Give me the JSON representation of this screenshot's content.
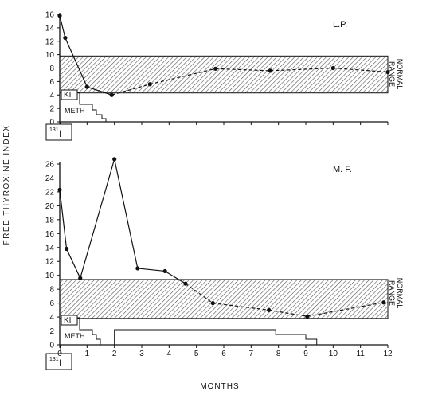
{
  "ylabel": "FREE THYROXINE INDEX",
  "xlabel": "MONTHS",
  "normal_range_label": [
    "NORMAL",
    "RANGE"
  ],
  "treatment_labels": {
    "ki": "KI",
    "meth": "METH",
    "iodine_mass": "131",
    "iodine_symbol": "I"
  },
  "chart_data": [
    {
      "type": "line",
      "title": "L.P.",
      "ylim": [
        0,
        16
      ],
      "yticks": [
        0,
        2,
        4,
        6,
        8,
        10,
        12,
        14,
        16
      ],
      "normal_range": [
        4.3,
        9.8
      ],
      "grid": false,
      "series": [
        {
          "x": [
            0,
            0.2,
            1.0,
            1.9,
            3.3,
            5.7,
            7.7,
            10.0,
            12.0
          ],
          "y": [
            15.8,
            12.5,
            5.2,
            4.0,
            5.6,
            7.9,
            7.6,
            8.0,
            7.4
          ]
        }
      ]
    },
    {
      "type": "line",
      "title": "M. F.",
      "ylim": [
        0,
        26
      ],
      "yticks": [
        0,
        2,
        4,
        6,
        8,
        10,
        12,
        14,
        16,
        18,
        20,
        22,
        24,
        26
      ],
      "normal_range": [
        3.8,
        9.4
      ],
      "grid": false,
      "series": [
        {
          "x": [
            0,
            0.25,
            0.75,
            2.0,
            2.85,
            3.85,
            4.6,
            5.6,
            7.65,
            9.05,
            11.85
          ],
          "y": [
            22.3,
            13.8,
            9.6,
            26.7,
            11.0,
            10.6,
            8.8,
            6.0,
            5.0,
            4.1,
            6.1
          ]
        }
      ]
    }
  ],
  "x_axis": {
    "range": [
      0,
      12
    ],
    "ticks": [
      0,
      1,
      2,
      3,
      4,
      5,
      6,
      7,
      8,
      9,
      10,
      11,
      12
    ]
  }
}
